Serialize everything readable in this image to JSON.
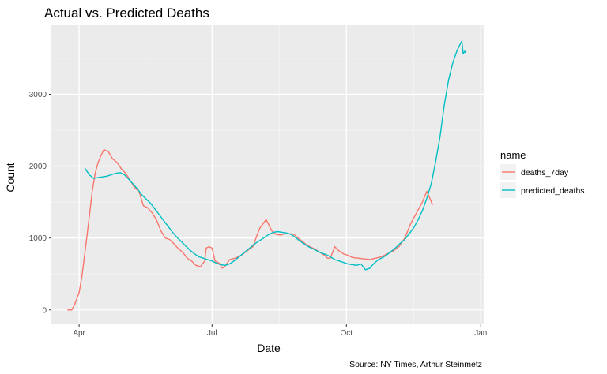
{
  "chart_data": {
    "type": "line",
    "title": "Actual vs. Predicted Deaths",
    "xlabel": "Date",
    "ylabel": "Count",
    "caption": "Source: NY Times, Arthur Steinmetz",
    "x_range": [
      "2020-03-13",
      "2021-01-03"
    ],
    "ylim": [
      -200,
      3960
    ],
    "x_ticks": [
      {
        "date": "2020-04-01",
        "label": "Apr"
      },
      {
        "date": "2020-07-01",
        "label": "Jul"
      },
      {
        "date": "2020-10-01",
        "label": "Oct"
      },
      {
        "date": "2021-01-01",
        "label": "Jan"
      }
    ],
    "x_minor_ticks": [
      "2020-05-16",
      "2020-08-16",
      "2020-11-16"
    ],
    "y_ticks": [
      0,
      1000,
      2000,
      3000
    ],
    "y_minor_ticks": [
      500,
      1500,
      2500,
      3500
    ],
    "grid": true,
    "legend": {
      "title": "name",
      "position": "right"
    },
    "series": [
      {
        "name": "deaths_7day",
        "color": "#F8766D",
        "points": [
          [
            "2020-03-24",
            0
          ],
          [
            "2020-03-27",
            0
          ],
          [
            "2020-03-29",
            80
          ],
          [
            "2020-04-01",
            240
          ],
          [
            "2020-04-03",
            480
          ],
          [
            "2020-04-05",
            800
          ],
          [
            "2020-04-08",
            1300
          ],
          [
            "2020-04-10",
            1650
          ],
          [
            "2020-04-12",
            1900
          ],
          [
            "2020-04-14",
            2050
          ],
          [
            "2020-04-16",
            2150
          ],
          [
            "2020-04-18",
            2230
          ],
          [
            "2020-04-21",
            2200
          ],
          [
            "2020-04-24",
            2100
          ],
          [
            "2020-04-27",
            2050
          ],
          [
            "2020-04-30",
            1960
          ],
          [
            "2020-05-03",
            1900
          ],
          [
            "2020-05-06",
            1800
          ],
          [
            "2020-05-09",
            1700
          ],
          [
            "2020-05-12",
            1650
          ],
          [
            "2020-05-15",
            1450
          ],
          [
            "2020-05-18",
            1420
          ],
          [
            "2020-05-21",
            1350
          ],
          [
            "2020-05-24",
            1250
          ],
          [
            "2020-05-27",
            1100
          ],
          [
            "2020-05-30",
            1000
          ],
          [
            "2020-06-02",
            980
          ],
          [
            "2020-06-05",
            920
          ],
          [
            "2020-06-08",
            850
          ],
          [
            "2020-06-11",
            800
          ],
          [
            "2020-06-14",
            720
          ],
          [
            "2020-06-17",
            680
          ],
          [
            "2020-06-20",
            620
          ],
          [
            "2020-06-23",
            600
          ],
          [
            "2020-06-26",
            680
          ],
          [
            "2020-06-27",
            860
          ],
          [
            "2020-06-29",
            880
          ],
          [
            "2020-07-01",
            860
          ],
          [
            "2020-07-03",
            680
          ],
          [
            "2020-07-06",
            650
          ],
          [
            "2020-07-08",
            580
          ],
          [
            "2020-07-10",
            610
          ],
          [
            "2020-07-13",
            700
          ],
          [
            "2020-07-17",
            720
          ],
          [
            "2020-07-21",
            760
          ],
          [
            "2020-07-25",
            820
          ],
          [
            "2020-07-29",
            880
          ],
          [
            "2020-08-01",
            1050
          ],
          [
            "2020-08-03",
            1150
          ],
          [
            "2020-08-05",
            1200
          ],
          [
            "2020-08-07",
            1260
          ],
          [
            "2020-08-09",
            1180
          ],
          [
            "2020-08-11",
            1100
          ],
          [
            "2020-08-14",
            1050
          ],
          [
            "2020-08-17",
            1040
          ],
          [
            "2020-08-20",
            1060
          ],
          [
            "2020-08-23",
            1060
          ],
          [
            "2020-08-26",
            1050
          ],
          [
            "2020-08-29",
            1000
          ],
          [
            "2020-09-01",
            950
          ],
          [
            "2020-09-04",
            900
          ],
          [
            "2020-09-07",
            870
          ],
          [
            "2020-09-10",
            840
          ],
          [
            "2020-09-13",
            800
          ],
          [
            "2020-09-16",
            760
          ],
          [
            "2020-09-18",
            720
          ],
          [
            "2020-09-20",
            720
          ],
          [
            "2020-09-23",
            880
          ],
          [
            "2020-09-26",
            820
          ],
          [
            "2020-09-29",
            780
          ],
          [
            "2020-10-02",
            760
          ],
          [
            "2020-10-05",
            730
          ],
          [
            "2020-10-09",
            720
          ],
          [
            "2020-10-13",
            710
          ],
          [
            "2020-10-17",
            700
          ],
          [
            "2020-10-21",
            720
          ],
          [
            "2020-10-25",
            740
          ],
          [
            "2020-10-29",
            780
          ],
          [
            "2020-11-02",
            820
          ],
          [
            "2020-11-06",
            880
          ],
          [
            "2020-11-10",
            1000
          ],
          [
            "2020-11-14",
            1200
          ],
          [
            "2020-11-18",
            1350
          ],
          [
            "2020-11-22",
            1500
          ],
          [
            "2020-11-25",
            1650
          ],
          [
            "2020-11-27",
            1560
          ],
          [
            "2020-11-29",
            1460
          ]
        ]
      },
      {
        "name": "predicted_deaths",
        "color": "#00BFC4",
        "points": [
          [
            "2020-04-05",
            1970
          ],
          [
            "2020-04-08",
            1880
          ],
          [
            "2020-04-11",
            1830
          ],
          [
            "2020-04-14",
            1840
          ],
          [
            "2020-04-17",
            1850
          ],
          [
            "2020-04-20",
            1860
          ],
          [
            "2020-04-23",
            1880
          ],
          [
            "2020-04-26",
            1900
          ],
          [
            "2020-04-29",
            1910
          ],
          [
            "2020-05-02",
            1880
          ],
          [
            "2020-05-05",
            1820
          ],
          [
            "2020-05-08",
            1750
          ],
          [
            "2020-05-11",
            1680
          ],
          [
            "2020-05-14",
            1600
          ],
          [
            "2020-05-17",
            1540
          ],
          [
            "2020-05-20",
            1480
          ],
          [
            "2020-05-23",
            1400
          ],
          [
            "2020-05-26",
            1320
          ],
          [
            "2020-05-29",
            1240
          ],
          [
            "2020-06-01",
            1160
          ],
          [
            "2020-06-04",
            1080
          ],
          [
            "2020-06-07",
            1010
          ],
          [
            "2020-06-10",
            950
          ],
          [
            "2020-06-13",
            890
          ],
          [
            "2020-06-16",
            830
          ],
          [
            "2020-06-19",
            780
          ],
          [
            "2020-06-22",
            740
          ],
          [
            "2020-06-25",
            720
          ],
          [
            "2020-06-28",
            700
          ],
          [
            "2020-07-01",
            680
          ],
          [
            "2020-07-04",
            650
          ],
          [
            "2020-07-07",
            630
          ],
          [
            "2020-07-10",
            620
          ],
          [
            "2020-07-13",
            640
          ],
          [
            "2020-07-16",
            680
          ],
          [
            "2020-07-19",
            730
          ],
          [
            "2020-07-22",
            780
          ],
          [
            "2020-07-25",
            830
          ],
          [
            "2020-07-28",
            880
          ],
          [
            "2020-07-31",
            930
          ],
          [
            "2020-08-03",
            970
          ],
          [
            "2020-08-06",
            1010
          ],
          [
            "2020-08-09",
            1050
          ],
          [
            "2020-08-12",
            1080
          ],
          [
            "2020-08-15",
            1090
          ],
          [
            "2020-08-18",
            1080
          ],
          [
            "2020-08-21",
            1070
          ],
          [
            "2020-08-24",
            1050
          ],
          [
            "2020-08-27",
            1010
          ],
          [
            "2020-08-30",
            960
          ],
          [
            "2020-09-02",
            920
          ],
          [
            "2020-09-05",
            880
          ],
          [
            "2020-09-08",
            850
          ],
          [
            "2020-09-11",
            820
          ],
          [
            "2020-09-14",
            790
          ],
          [
            "2020-09-17",
            770
          ],
          [
            "2020-09-20",
            740
          ],
          [
            "2020-09-23",
            700
          ],
          [
            "2020-09-26",
            680
          ],
          [
            "2020-09-29",
            660
          ],
          [
            "2020-10-02",
            640
          ],
          [
            "2020-10-05",
            630
          ],
          [
            "2020-10-08",
            620
          ],
          [
            "2020-10-11",
            640
          ],
          [
            "2020-10-14",
            560
          ],
          [
            "2020-10-17",
            580
          ],
          [
            "2020-10-20",
            650
          ],
          [
            "2020-10-23",
            700
          ],
          [
            "2020-10-26",
            730
          ],
          [
            "2020-10-29",
            770
          ],
          [
            "2020-11-01",
            820
          ],
          [
            "2020-11-04",
            870
          ],
          [
            "2020-11-07",
            930
          ],
          [
            "2020-11-10",
            980
          ],
          [
            "2020-11-13",
            1060
          ],
          [
            "2020-11-16",
            1140
          ],
          [
            "2020-11-19",
            1250
          ],
          [
            "2020-11-22",
            1380
          ],
          [
            "2020-11-25",
            1550
          ],
          [
            "2020-11-28",
            1750
          ],
          [
            "2020-12-01",
            2050
          ],
          [
            "2020-12-04",
            2400
          ],
          [
            "2020-12-07",
            2850
          ],
          [
            "2020-12-10",
            3200
          ],
          [
            "2020-12-13",
            3450
          ],
          [
            "2020-12-16",
            3620
          ],
          [
            "2020-12-18",
            3700
          ],
          [
            "2020-12-19",
            3740
          ],
          [
            "2020-12-20",
            3560
          ],
          [
            "2020-12-21",
            3600
          ],
          [
            "2020-12-22",
            3570
          ]
        ]
      }
    ]
  }
}
